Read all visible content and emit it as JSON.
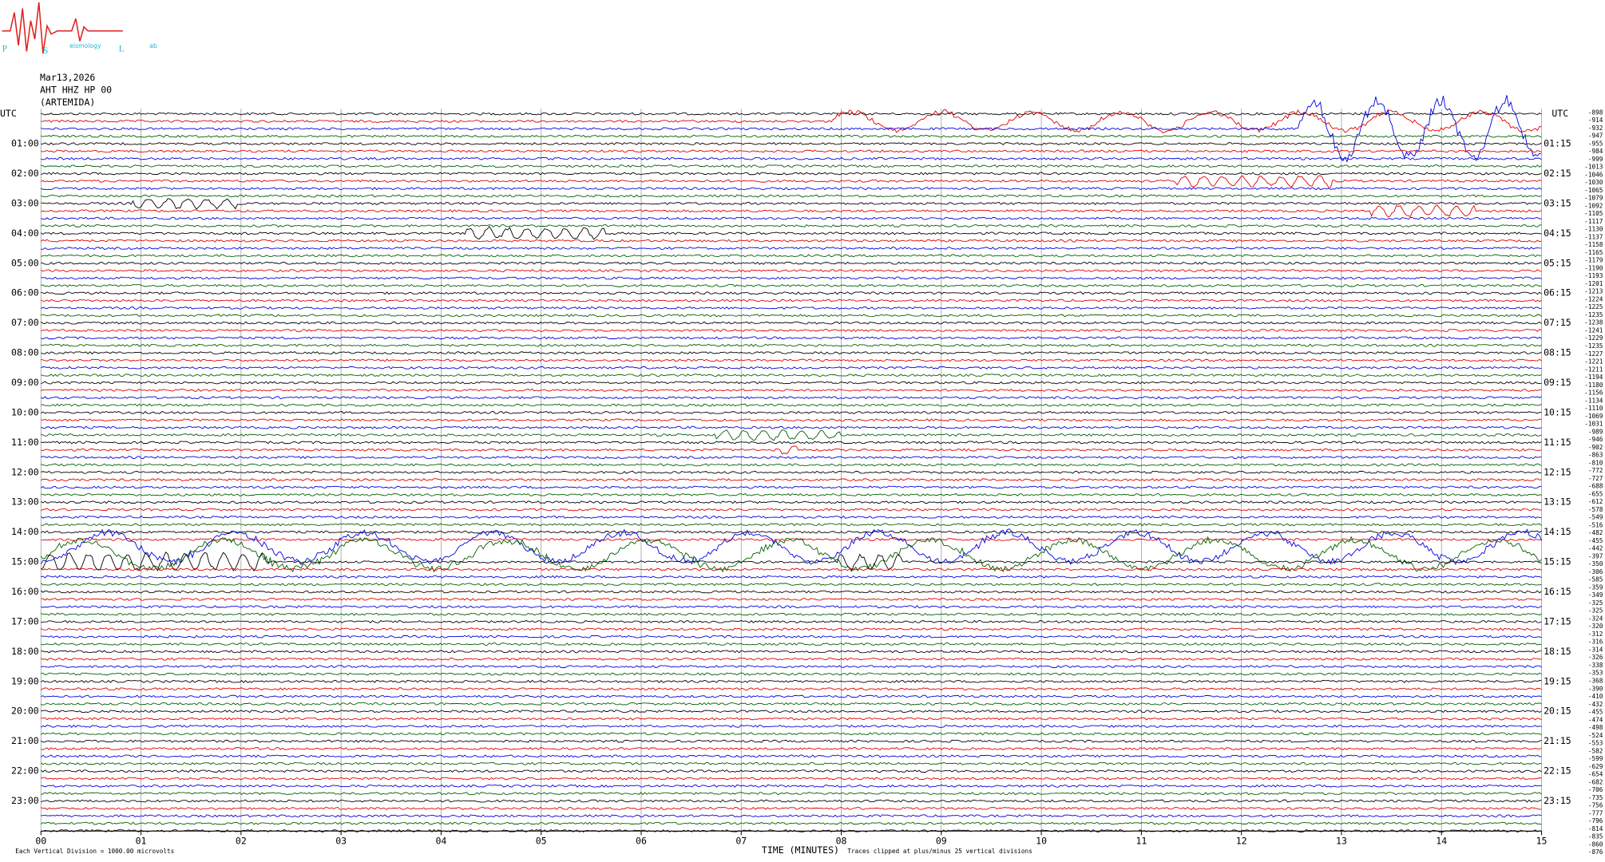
{
  "logo": {
    "letters": [
      "P",
      "S",
      "L"
    ],
    "small": [
      "eismology",
      "ab"
    ]
  },
  "header": {
    "date": "Mar13,2026",
    "station": "AHT HHZ HP 00",
    "location": "(ARTEMIDA)"
  },
  "axis": {
    "left_title": "UTC",
    "right_title": "UTC",
    "left_labels": [
      "01:00",
      "02:00",
      "03:00",
      "04:00",
      "05:00",
      "06:00",
      "07:00",
      "08:00",
      "09:00",
      "10:00",
      "11:00",
      "12:00",
      "13:00",
      "14:00",
      "15:00",
      "16:00",
      "17:00",
      "18:00",
      "19:00",
      "20:00",
      "21:00",
      "22:00",
      "23:00"
    ],
    "right_labels": [
      "01:15",
      "02:15",
      "03:15",
      "04:15",
      "05:15",
      "06:15",
      "07:15",
      "08:15",
      "09:15",
      "10:15",
      "11:15",
      "12:15",
      "13:15",
      "14:15",
      "15:15",
      "16:15",
      "17:15",
      "18:15",
      "19:15",
      "20:15",
      "21:15",
      "22:15",
      "23:15"
    ],
    "offsets": [
      -898,
      -914,
      -932,
      -947,
      -955,
      -984,
      -999,
      -1013,
      -1046,
      -1030,
      -1065,
      -1079,
      -1092,
      -1105,
      -1117,
      -1130,
      -1137,
      -1158,
      -1165,
      -1179,
      -1190,
      -1193,
      -1201,
      -1213,
      -1224,
      -1225,
      -1235,
      -1238,
      -1241,
      -1229,
      -1235,
      -1227,
      -1221,
      -1211,
      -1194,
      -1180,
      -1156,
      -1134,
      -1110,
      -1069,
      -1031,
      -989,
      -946,
      -902,
      -863,
      -810,
      -772,
      -727,
      -688,
      -655,
      -612,
      -578,
      -549,
      -516,
      -482,
      -455,
      -442,
      -397,
      -350,
      -306,
      -585,
      -359,
      -349,
      -325,
      -325,
      -324,
      -320,
      -312,
      -316,
      -314,
      -326,
      -338,
      -353,
      -368,
      -390,
      -410,
      -432,
      -455,
      -474,
      -498,
      -524,
      -553,
      -582,
      -599,
      -629,
      -654,
      -682,
      -706,
      -735,
      -756,
      -777,
      -796,
      -814,
      -835,
      -860,
      -876
    ],
    "x_ticks": [
      "00",
      "01",
      "02",
      "03",
      "04",
      "05",
      "06",
      "07",
      "08",
      "09",
      "10",
      "11",
      "12",
      "13",
      "14",
      "15"
    ],
    "x_title": "TIME (MINUTES)"
  },
  "footer": {
    "scale": "Each Vertical Division = 1000.00 microvolts",
    "clip": "Traces clipped at plus/minus 25 vertical divisions"
  }
}
